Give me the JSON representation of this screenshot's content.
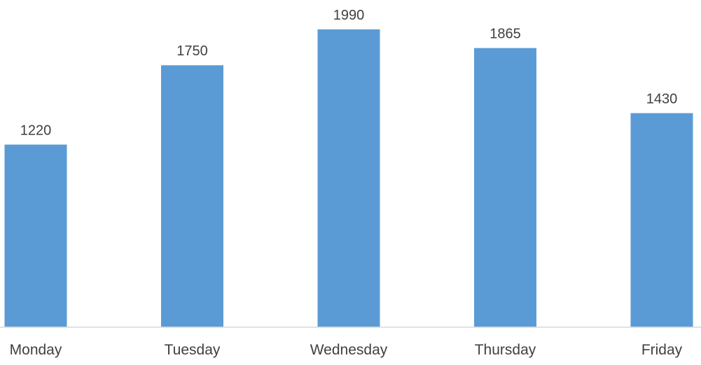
{
  "chart_data": {
    "type": "bar",
    "categories": [
      "Monday",
      "Tuesday",
      "Wednesday",
      "Thursday",
      "Friday"
    ],
    "values": [
      1220,
      1750,
      1990,
      1865,
      1430
    ],
    "title": "",
    "xlabel": "",
    "ylabel": "",
    "ylim": [
      0,
      2130
    ],
    "grid": false,
    "legend": "none",
    "data_labels": true,
    "colors": {
      "bar": "#5b9bd5",
      "axis": "#d9d9d9",
      "text": "#404040"
    }
  }
}
